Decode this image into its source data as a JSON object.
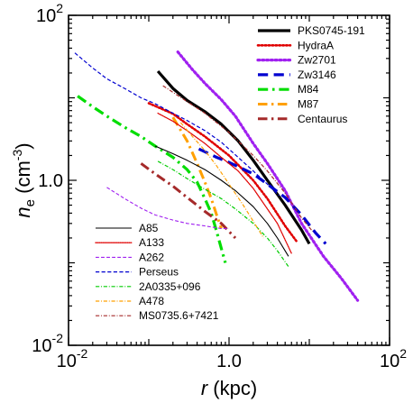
{
  "chart_data": {
    "type": "line",
    "xscale": "log",
    "yscale": "log",
    "xlim": [
      0.01,
      100
    ],
    "ylim": [
      0.01,
      100
    ],
    "xlabel": {
      "var": "r",
      "unit": "(kpc)"
    },
    "ylabel": {
      "var": "n",
      "sub": "e",
      "unit_pre": "(cm",
      "unit_exp": "-3",
      "unit_post": ")"
    },
    "xticks": [
      {
        "value": 0.01,
        "base": "10",
        "exp": "-2"
      },
      {
        "value": 1,
        "base": "10",
        "exp": "0",
        "text": "1.0"
      },
      {
        "value": 100,
        "base": "10",
        "exp": "2"
      }
    ],
    "yticks": [
      {
        "value": 0.01,
        "base": "10",
        "exp": "-2"
      },
      {
        "value": 1,
        "base": "10",
        "exp": "0",
        "text": "1.0"
      },
      {
        "value": 100,
        "base": "10",
        "exp": "2"
      }
    ],
    "legend_top_right": [
      "PKS0745-191",
      "HydraA",
      "Zw2701",
      "Zw3146",
      "M84",
      "M87",
      "Centaurus"
    ],
    "legend_bottom_left": [
      "A85",
      "A133",
      "A262",
      "Perseus",
      "2A0335+096",
      "A478",
      "MS0735.6+7421"
    ],
    "series": [
      {
        "name": "PKS0745-191",
        "color": "#000000",
        "style": "solid",
        "width": 3.2,
        "x": [
          0.13,
          0.2,
          0.3,
          0.5,
          0.8,
          1.3,
          2.0,
          3.0,
          5.0,
          8.0,
          10.0
        ],
        "y": [
          21,
          13,
          9.3,
          6.8,
          4.8,
          3.0,
          1.75,
          1.0,
          0.5,
          0.25,
          0.17
        ]
      },
      {
        "name": "HydraA",
        "color": "#e00000",
        "style": "dotted",
        "width": 2.6,
        "x": [
          0.1,
          0.2,
          0.3,
          0.5,
          1.0,
          2.0,
          3.0,
          5.0,
          7.0
        ],
        "y": [
          8.6,
          6.4,
          4.8,
          3.4,
          2.0,
          1.0,
          0.6,
          0.28,
          0.18
        ]
      },
      {
        "name": "Zw2701",
        "color": "#a020f0",
        "style": "dotted",
        "width": 3.2,
        "x": [
          0.23,
          0.35,
          0.5,
          0.8,
          1.2,
          2.0,
          3.0,
          5.0,
          8.0,
          15,
          25,
          40
        ],
        "y": [
          36,
          22,
          15,
          9.5,
          6.0,
          2.8,
          1.6,
          0.75,
          0.3,
          0.12,
          0.065,
          0.035
        ]
      },
      {
        "name": "Zw3146",
        "color": "#0000d0",
        "style": "dashed",
        "width": 3.2,
        "x": [
          0.42,
          0.7,
          1.0,
          2.0,
          3.0,
          5.0,
          8.0,
          12,
          16
        ],
        "y": [
          2.4,
          1.9,
          1.65,
          1.2,
          0.9,
          0.62,
          0.38,
          0.23,
          0.17
        ]
      },
      {
        "name": "M84",
        "color": "#00dd00",
        "style": "dashdot",
        "width": 3.2,
        "x": [
          0.013,
          0.02,
          0.03,
          0.05,
          0.08,
          0.12,
          0.2,
          0.3,
          0.4,
          0.5,
          0.6,
          0.7,
          0.8,
          0.9
        ],
        "y": [
          10.5,
          7.8,
          6.0,
          4.4,
          3.4,
          2.6,
          1.9,
          1.35,
          0.95,
          0.6,
          0.4,
          0.24,
          0.15,
          0.1
        ]
      },
      {
        "name": "M87",
        "color": "#ffa000",
        "style": "dashdot",
        "width": 3.0,
        "x": [
          0.2,
          0.3,
          0.4,
          0.5,
          0.6,
          0.7,
          0.8
        ],
        "y": [
          5.8,
          3.0,
          1.6,
          0.95,
          0.6,
          0.38,
          0.26
        ]
      },
      {
        "name": "Centaurus",
        "color": "#a52a2a",
        "style": "dashdot",
        "width": 3.0,
        "x": [
          0.08,
          0.12,
          0.2,
          0.3,
          0.5,
          0.8,
          1.2
        ],
        "y": [
          1.6,
          1.2,
          0.85,
          0.62,
          0.42,
          0.3,
          0.2
        ]
      },
      {
        "name": "A85",
        "color": "#000000",
        "style": "solid",
        "width": 1.1,
        "x": [
          0.12,
          0.2,
          0.3,
          0.5,
          0.8,
          1.2,
          2.0,
          3.0,
          4.0,
          5.5
        ],
        "y": [
          2.6,
          2.1,
          1.75,
          1.35,
          1.0,
          0.75,
          0.48,
          0.3,
          0.2,
          0.12
        ]
      },
      {
        "name": "A133",
        "color": "#e00000",
        "style": "dotted",
        "width": 1.3,
        "x": [
          0.13,
          0.2,
          0.3,
          0.5,
          0.8,
          1.3,
          2.0,
          3.0,
          4.0,
          6.0
        ],
        "y": [
          6.5,
          5.2,
          4.0,
          2.8,
          1.9,
          1.3,
          0.8,
          0.45,
          0.3,
          0.13
        ]
      },
      {
        "name": "A262",
        "color": "#a020f0",
        "style": "dashed",
        "width": 1.1,
        "x": [
          0.03,
          0.05,
          0.08,
          0.12,
          0.2,
          0.3,
          0.5,
          0.8,
          1.0
        ],
        "y": [
          0.82,
          0.6,
          0.46,
          0.38,
          0.33,
          0.3,
          0.28,
          0.26,
          0.26
        ]
      },
      {
        "name": "Perseus",
        "color": "#0000d0",
        "style": "dashed",
        "width": 1.2,
        "x": [
          0.012,
          0.02,
          0.03,
          0.05,
          0.08,
          0.12,
          0.2,
          0.3,
          0.5,
          0.8,
          1.3,
          2.0,
          3.0,
          4.2
        ],
        "y": [
          35,
          23,
          17,
          13,
          10,
          8.5,
          6.5,
          5.3,
          4.0,
          2.9,
          1.9,
          1.3,
          0.9,
          0.65
        ]
      },
      {
        "name": "2A0335+096",
        "color": "#00cc00",
        "style": "dashdot",
        "width": 1.2,
        "x": [
          0.13,
          0.2,
          0.3,
          0.5,
          0.8,
          1.2,
          2.0,
          3.0,
          4.0,
          5.5
        ],
        "y": [
          1.7,
          1.35,
          1.05,
          0.78,
          0.6,
          0.45,
          0.3,
          0.2,
          0.14,
          0.09
        ]
      },
      {
        "name": "A478",
        "color": "#ffa000",
        "style": "dashdot",
        "width": 1.2,
        "x": [
          0.25,
          0.35,
          0.5,
          0.7,
          1.0,
          1.5,
          2.0,
          2.7
        ],
        "y": [
          5.0,
          3.4,
          2.3,
          1.5,
          0.9,
          0.5,
          0.32,
          0.2
        ]
      },
      {
        "name": "MS0735.6+7421",
        "color": "#a52a2a",
        "style": "dashdot",
        "width": 1.2,
        "x": [
          0.15,
          0.3,
          0.5,
          1.0,
          2.0,
          3.0,
          5.0,
          8.0,
          11
        ],
        "y": [
          14,
          9.0,
          6.5,
          3.8,
          2.0,
          1.3,
          0.7,
          0.35,
          0.24
        ]
      }
    ]
  }
}
